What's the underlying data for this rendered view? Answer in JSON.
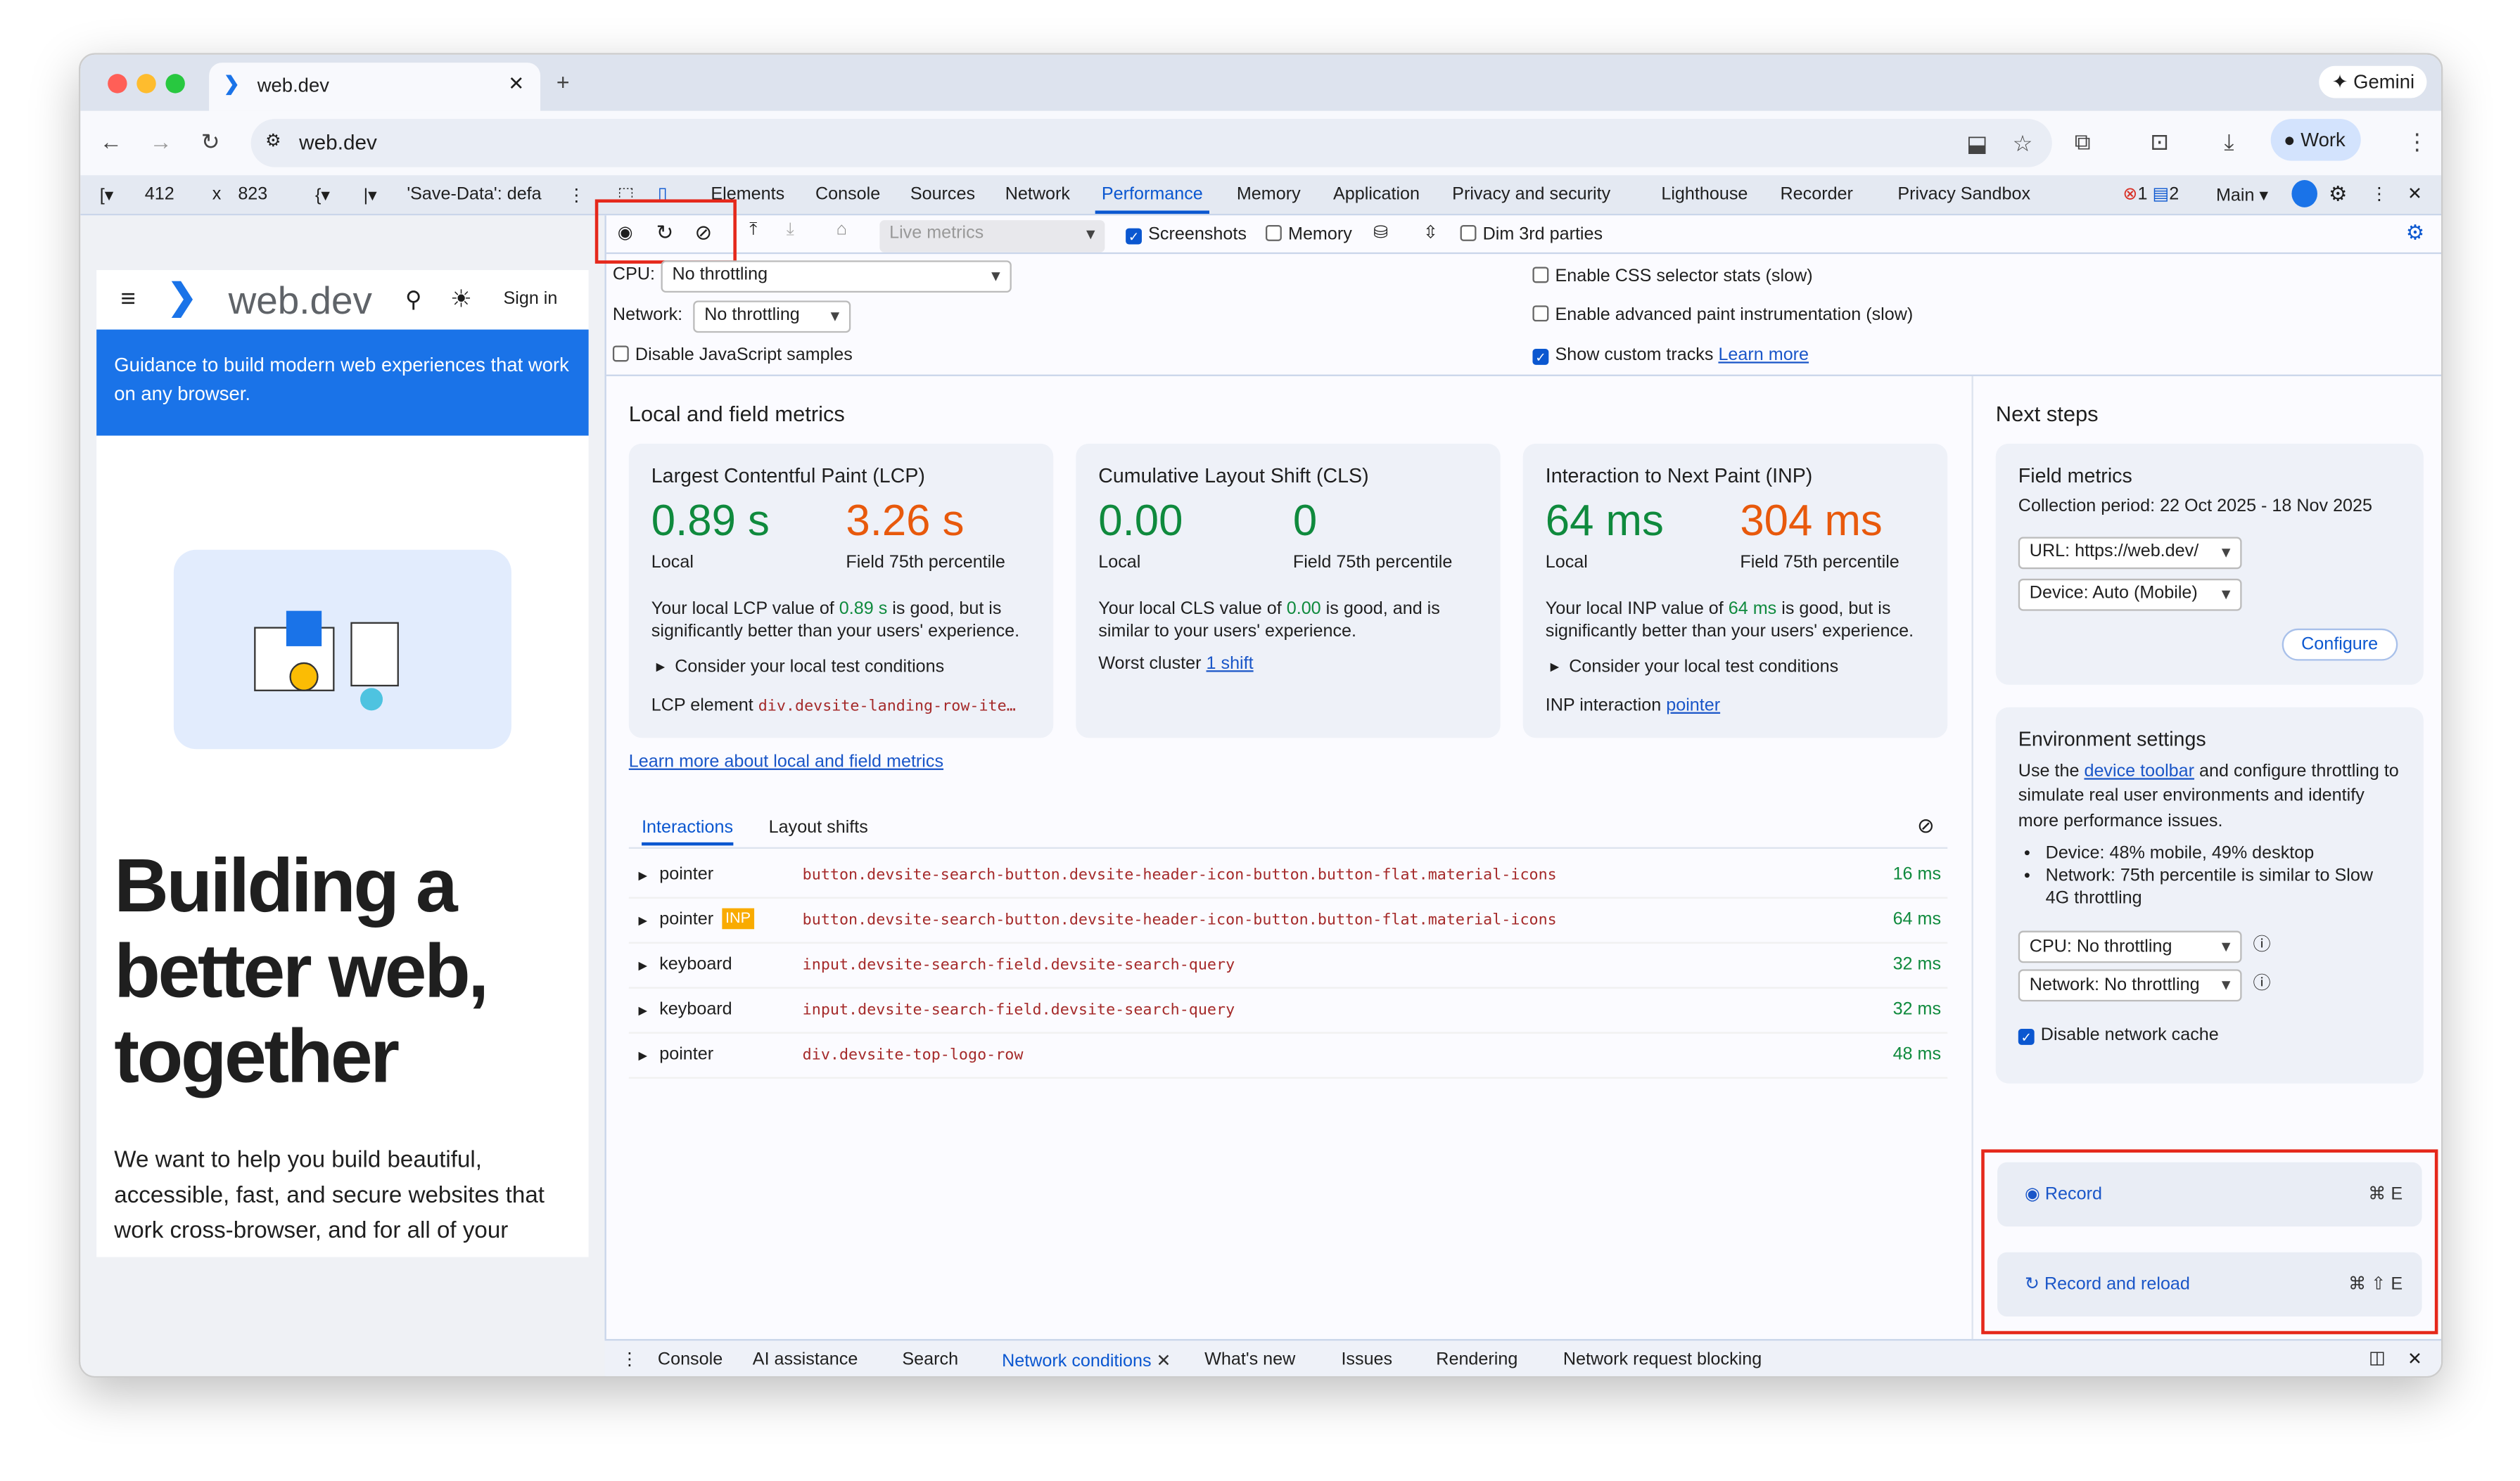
{
  "browser": {
    "tab_title": "web.dev",
    "url": "web.dev",
    "gemini": "Gemini",
    "profile": "Work"
  },
  "device_toolbar": {
    "width": "412",
    "x": "x",
    "height": "823",
    "save_data": "'Save-Data': defa"
  },
  "devtools": {
    "tabs": [
      "Elements",
      "Console",
      "Sources",
      "Network",
      "Performance",
      "Memory",
      "Application",
      "Privacy and security",
      "Lighthouse",
      "Recorder",
      "Privacy Sandbox"
    ],
    "active_tab": "Performance",
    "errors": "1",
    "messages": "2",
    "target": "Main"
  },
  "toolbar": {
    "live_metrics": "Live metrics",
    "screenshots": "Screenshots",
    "memory": "Memory",
    "dim": "Dim 3rd parties"
  },
  "settings": {
    "cpu_label": "CPU:",
    "cpu_value": "No throttling",
    "network_label": "Network:",
    "network_value": "No throttling",
    "disable_js": "Disable JavaScript samples",
    "css_stats": "Enable CSS selector stats (slow)",
    "paint": "Enable advanced paint instrumentation (slow)",
    "custom_tracks": "Show custom tracks",
    "learn_more": "Learn more"
  },
  "page": {
    "logo": "web.dev",
    "sign_in": "Sign in",
    "banner": "Guidance to build modern web experiences that work on any browser.",
    "headline": "Building a better web, together",
    "body": "We want to help you build beautiful, accessible, fast, and secure websites that work cross-browser, and for all of your"
  },
  "metrics": {
    "title": "Local and field metrics",
    "learn_link": "Learn more about local and field metrics",
    "lcp": {
      "title": "Largest Contentful Paint (LCP)",
      "local": "0.89 s",
      "field": "3.26 s",
      "local_label": "Local",
      "field_label": "Field 75th percentile",
      "desc_pre": "Your local LCP value of ",
      "desc_val": "0.89 s",
      "desc_post": " is good, but is significantly better than your users' experience.",
      "consider": "Consider your local test conditions",
      "el_label": "LCP element",
      "el_value": "div.devsite-landing-row-ite…"
    },
    "cls": {
      "title": "Cumulative Layout Shift (CLS)",
      "local": "0.00",
      "field": "0",
      "local_label": "Local",
      "field_label": "Field 75th percentile",
      "desc_pre": "Your local CLS value of ",
      "desc_val": "0.00",
      "desc_post": " is good, and is similar to your users' experience.",
      "worst_label": "Worst cluster",
      "worst_value": "1 shift"
    },
    "inp": {
      "title": "Interaction to Next Paint (INP)",
      "local": "64 ms",
      "field": "304 ms",
      "local_label": "Local",
      "field_label": "Field 75th percentile",
      "desc_pre": "Your local INP value of ",
      "desc_val": "64 ms",
      "desc_post": " is good, but is significantly better than your users' experience.",
      "consider": "Consider your local test conditions",
      "int_label": "INP interaction",
      "int_value": "pointer"
    }
  },
  "interactions": {
    "tabs": [
      "Interactions",
      "Layout shifts"
    ],
    "rows": [
      {
        "type": "pointer",
        "badge": "",
        "selector": "button.devsite-search-button.devsite-header-icon-button.button-flat.material-icons",
        "time": "16 ms"
      },
      {
        "type": "pointer",
        "badge": "INP",
        "selector": "button.devsite-search-button.devsite-header-icon-button.button-flat.material-icons",
        "time": "64 ms"
      },
      {
        "type": "keyboard",
        "badge": "",
        "selector": "input.devsite-search-field.devsite-search-query",
        "time": "32 ms"
      },
      {
        "type": "keyboard",
        "badge": "",
        "selector": "input.devsite-search-field.devsite-search-query",
        "time": "32 ms"
      },
      {
        "type": "pointer",
        "badge": "",
        "selector": "div.devsite-top-logo-row",
        "time": "48 ms"
      }
    ]
  },
  "next_steps": {
    "title": "Next steps",
    "field": {
      "title": "Field metrics",
      "period": "Collection period: 22 Oct 2025 - 18 Nov 2025",
      "url": "URL: https://web.dev/",
      "device": "Device: Auto (Mobile)",
      "configure": "Configure"
    },
    "env": {
      "title": "Environment settings",
      "desc_pre": "Use the ",
      "desc_link": "device toolbar",
      "desc_post": " and configure throttling to simulate real user environments and identify more performance issues.",
      "bullet1": "Device: 48% mobile, 49% desktop",
      "bullet2": "Network: 75th percentile is similar to Slow 4G throttling",
      "cpu": "CPU: No throttling",
      "network": "Network: No throttling",
      "cache": "Disable network cache"
    },
    "record": "Record",
    "record_key": "⌘ E",
    "reload": "Record and reload",
    "reload_key": "⌘ ⇧ E"
  },
  "drawer": {
    "tabs": [
      "Console",
      "AI assistance",
      "Search",
      "Network conditions",
      "What's new",
      "Issues",
      "Rendering",
      "Network request blocking"
    ],
    "active": "Network conditions"
  }
}
